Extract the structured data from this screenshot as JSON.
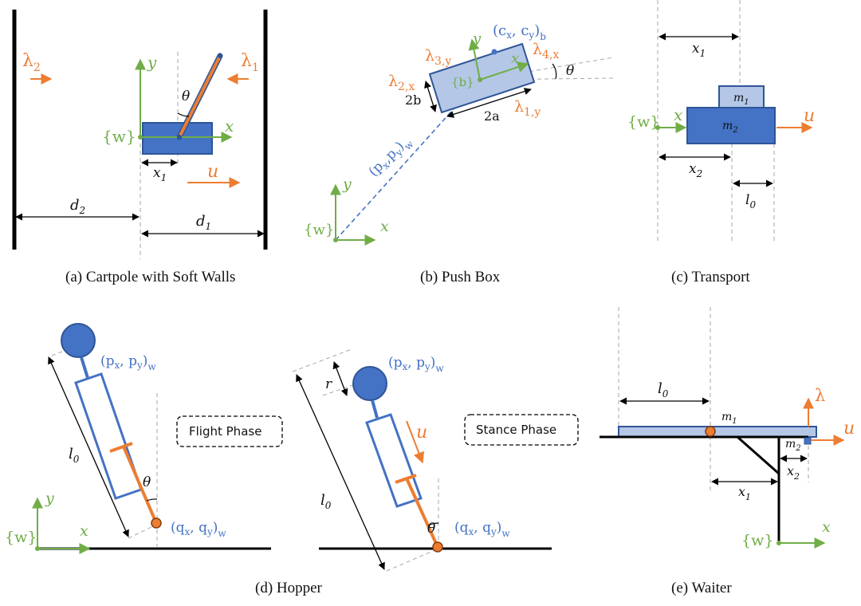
{
  "colors": {
    "blue": "#4472c4",
    "blue_fill": "#b4c7e7",
    "dark_blue": "#2f5597",
    "orange": "#ed7d31",
    "green": "#70ad47",
    "gray_dash": "#a6a6a6",
    "black": "#000000"
  },
  "panels": {
    "a": {
      "caption": "(a) Cartpole with Soft Walls",
      "lambda2": "λ",
      "lambda2_sub": "2",
      "lambda1": "λ",
      "lambda1_sub": "1",
      "y": "y",
      "x": "x",
      "frame": "{w}",
      "theta": "θ",
      "x1": "x",
      "x1_sub": "1",
      "u": "u",
      "d2": "d",
      "d2_sub": "2",
      "d1": "d",
      "d1_sub": "1"
    },
    "b": {
      "caption": "(b) Push Box",
      "c": "(c",
      "c_x": "x",
      "c_comma": ", c",
      "c_y": "y",
      "c_close": ")",
      "c_sub": "b",
      "lambda3": "λ",
      "lambda3_sub": "3,y",
      "lambda4": "λ",
      "lambda4_sub": "4,x",
      "lambda2": "λ",
      "lambda2_sub": "2,x",
      "lambda1": "λ",
      "lambda1_sub": "1,y",
      "y_body": "y",
      "x_body": "x",
      "frame_b": "{b}",
      "theta": "θ",
      "two_b": "2b",
      "two_a": "2a",
      "p": "(p",
      "p_x": "x",
      "p_comma": ",p",
      "p_y": "y",
      "p_close": ")",
      "p_sub": "w",
      "y_world": "y",
      "x_world": "x",
      "frame_w": "{w}"
    },
    "c": {
      "caption": "(c) Transport",
      "x1": "x",
      "x1_sub": "1",
      "m1": "m",
      "m1_sub": "1",
      "m2": "m",
      "m2_sub": "2",
      "frame": "{w}",
      "x": "x",
      "u": "u",
      "x2": "x",
      "x2_sub": "2",
      "l0": "l",
      "l0_sub": "0"
    },
    "d": {
      "caption": "(d) Hopper",
      "flight_label": "Flight Phase",
      "stance_label": "Stance Phase",
      "p1": "(p",
      "p1_x": "x",
      "p1_comma": ", p",
      "p1_y": "y",
      "p1_close": ")",
      "p1_sub": "w",
      "q1": "(q",
      "q1_x": "x",
      "q1_comma": ", q",
      "q1_y": "y",
      "q1_close": ")",
      "q1_sub": "w",
      "p2": "(p",
      "p2_x": "x",
      "p2_comma": ", p",
      "p2_y": "y",
      "p2_close": ")",
      "p2_sub": "w",
      "q2": "(q",
      "q2_x": "x",
      "q2_comma": ", q",
      "q2_y": "y",
      "q2_close": ")",
      "q2_sub": "w",
      "l0a": "l",
      "l0a_sub": "0",
      "l0b": "l",
      "l0b_sub": "0",
      "theta1": "θ",
      "theta2": "θ",
      "r": "r",
      "u": "u",
      "y": "y",
      "x": "x",
      "frame": "{w}"
    },
    "e": {
      "caption": "(e) Waiter",
      "l0": "l",
      "l0_sub": "0",
      "m1": "m",
      "m1_sub": "1",
      "m2": "m",
      "m2_sub": "2",
      "lambda": "λ",
      "u": "u",
      "x2": "x",
      "x2_sub": "2",
      "x1": "x",
      "x1_sub": "1",
      "frame": "{w}",
      "x": "x"
    }
  }
}
